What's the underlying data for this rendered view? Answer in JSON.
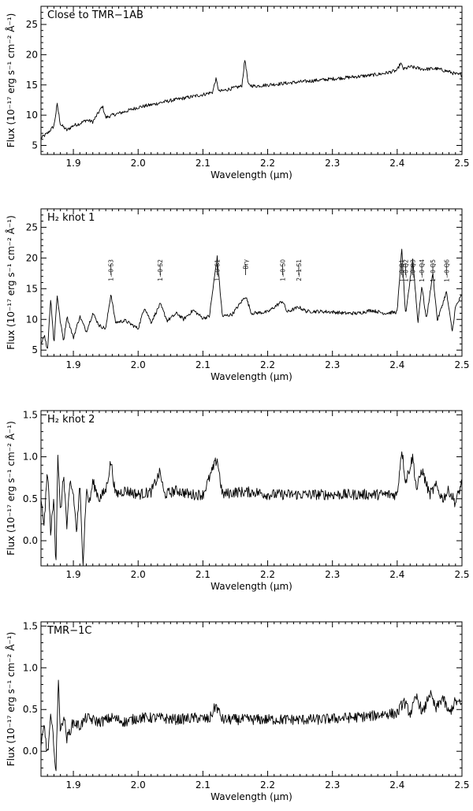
{
  "chart_data": [
    {
      "type": "line",
      "title": "Close to TMR−1AB",
      "xlabel": "Wavelength (μm)",
      "ylabel": "Flux (10⁻¹⁷ erg s⁻¹ cm⁻² Å⁻¹)",
      "xlim": [
        1.85,
        2.5
      ],
      "ylim": [
        3.5,
        28
      ],
      "xticks": [
        1.9,
        2.0,
        2.1,
        2.2,
        2.3,
        2.4,
        2.5
      ],
      "yticks": [
        5,
        10,
        15,
        20,
        25
      ],
      "grid": false,
      "line_labels": [],
      "series": [
        {
          "x": [
            1.85,
            1.86,
            1.87,
            1.875,
            1.88,
            1.89,
            1.9,
            1.91,
            1.92,
            1.93,
            1.945,
            1.95,
            1.96,
            1.98,
            2.0,
            2.02,
            2.04,
            2.06,
            2.08,
            2.1,
            2.115,
            2.12,
            2.125,
            2.14,
            2.16,
            2.165,
            2.17,
            2.18,
            2.2,
            2.22,
            2.24,
            2.26,
            2.28,
            2.3,
            2.32,
            2.34,
            2.36,
            2.38,
            2.4,
            2.405,
            2.41,
            2.42,
            2.44,
            2.46,
            2.48,
            2.49,
            2.5
          ],
          "y": [
            6.2,
            7.0,
            8.2,
            11.8,
            8.5,
            7.5,
            8.3,
            8.6,
            9.2,
            8.9,
            11.5,
            9.6,
            10.0,
            10.6,
            11.3,
            11.7,
            12.2,
            12.6,
            13.0,
            13.4,
            13.8,
            16.0,
            13.9,
            14.3,
            14.8,
            19.3,
            15.0,
            14.8,
            15.0,
            15.2,
            15.4,
            15.6,
            15.8,
            16.0,
            16.2,
            16.4,
            16.6,
            16.9,
            17.4,
            18.6,
            17.6,
            18.0,
            17.6,
            17.7,
            17.2,
            16.8,
            16.6
          ]
        }
      ]
    },
    {
      "type": "line",
      "title": "H₂ knot 1",
      "xlabel": "Wavelength (μm)",
      "ylabel": "Flux (10⁻¹⁷ erg s⁻¹ cm⁻² Å⁻¹)",
      "xlim": [
        1.85,
        2.5
      ],
      "ylim": [
        4,
        28
      ],
      "xticks": [
        1.9,
        2.0,
        2.1,
        2.2,
        2.3,
        2.4,
        2.5
      ],
      "yticks": [
        5,
        10,
        15,
        20,
        25
      ],
      "grid": false,
      "line_labels": [
        {
          "text": "1−0 S3",
          "x": 1.958
        },
        {
          "text": "1−0 S2",
          "x": 2.034
        },
        {
          "text": "1−0 S1",
          "x": 2.122
        },
        {
          "text": "Brγ",
          "x": 2.166
        },
        {
          "text": "1−0 S0",
          "x": 2.223
        },
        {
          "text": "2−1 S1",
          "x": 2.248
        },
        {
          "text": "1−0 Q1",
          "x": 2.407
        },
        {
          "text": "1−0 Q2",
          "x": 2.413
        },
        {
          "text": "1−0 Q3",
          "x": 2.424
        },
        {
          "text": "1−0 Q4",
          "x": 2.438
        },
        {
          "text": "1−0 Q5",
          "x": 2.455
        },
        {
          "text": "1−0 Q6",
          "x": 2.476
        }
      ],
      "series": [
        {
          "x": [
            1.85,
            1.855,
            1.86,
            1.865,
            1.87,
            1.875,
            1.88,
            1.885,
            1.89,
            1.9,
            1.91,
            1.92,
            1.93,
            1.94,
            1.95,
            1.958,
            1.965,
            1.98,
            2.0,
            2.01,
            2.02,
            2.034,
            2.045,
            2.06,
            2.07,
            2.085,
            2.1,
            2.11,
            2.122,
            2.13,
            2.145,
            2.166,
            2.175,
            2.2,
            2.223,
            2.23,
            2.248,
            2.26,
            2.28,
            2.3,
            2.32,
            2.34,
            2.36,
            2.38,
            2.4,
            2.407,
            2.413,
            2.424,
            2.432,
            2.438,
            2.445,
            2.455,
            2.462,
            2.476,
            2.485,
            2.49,
            2.5
          ],
          "y": [
            6.0,
            7.5,
            5.0,
            13.5,
            6.0,
            14.0,
            9.5,
            6.5,
            10.5,
            7.0,
            10.5,
            8.0,
            11.0,
            9.0,
            8.5,
            14.2,
            9.5,
            9.8,
            8.5,
            12.0,
            9.5,
            12.5,
            9.8,
            11.0,
            10.0,
            11.5,
            10.2,
            10.5,
            20.2,
            10.5,
            10.8,
            13.8,
            11.0,
            11.2,
            13.0,
            11.2,
            12.0,
            11.3,
            11.3,
            11.2,
            11.0,
            11.0,
            11.5,
            11.0,
            11.2,
            21.5,
            10.5,
            20.0,
            9.5,
            15.5,
            10.0,
            17.5,
            9.8,
            14.5,
            8.0,
            12.0,
            14.0
          ]
        }
      ]
    },
    {
      "type": "line",
      "title": "H₂ knot 2",
      "xlabel": "Wavelength (μm)",
      "ylabel": "Flux (10⁻¹⁷ erg s⁻¹ cm⁻² Å⁻¹)",
      "xlim": [
        1.85,
        2.5
      ],
      "ylim": [
        -0.3,
        1.55
      ],
      "xticks": [
        1.9,
        2.0,
        2.1,
        2.2,
        2.3,
        2.4,
        2.5
      ],
      "yticks": [
        0.0,
        0.5,
        1.0,
        1.5
      ],
      "grid": false,
      "line_labels": [],
      "series": [
        {
          "x": [
            1.85,
            1.855,
            1.86,
            1.865,
            1.87,
            1.873,
            1.876,
            1.88,
            1.885,
            1.89,
            1.895,
            1.9,
            1.905,
            1.91,
            1.915,
            1.92,
            1.925,
            1.93,
            1.94,
            1.95,
            1.958,
            1.965,
            1.98,
            2.0,
            2.02,
            2.034,
            2.04,
            2.06,
            2.08,
            2.1,
            2.122,
            2.13,
            2.15,
            2.18,
            2.2,
            2.22,
            2.25,
            2.28,
            2.3,
            2.33,
            2.36,
            2.38,
            2.4,
            2.407,
            2.413,
            2.424,
            2.43,
            2.438,
            2.45,
            2.46,
            2.47,
            2.48,
            2.49,
            2.5
          ],
          "y": [
            0.45,
            0.2,
            0.85,
            0.1,
            0.5,
            -0.3,
            1.05,
            0.3,
            0.8,
            0.15,
            0.7,
            0.55,
            0.1,
            0.65,
            -0.25,
            0.6,
            0.45,
            0.7,
            0.5,
            0.6,
            0.95,
            0.55,
            0.6,
            0.55,
            0.58,
            0.82,
            0.55,
            0.6,
            0.55,
            0.55,
            0.98,
            0.55,
            0.58,
            0.58,
            0.55,
            0.55,
            0.55,
            0.55,
            0.55,
            0.55,
            0.55,
            0.55,
            0.55,
            1.1,
            0.7,
            1.0,
            0.6,
            0.85,
            0.55,
            0.65,
            0.5,
            0.6,
            0.45,
            0.7
          ]
        }
      ]
    },
    {
      "type": "line",
      "title": "TMR−1C",
      "xlabel": "Wavelength (μm)",
      "ylabel": "Flux (10⁻¹⁷ erg s⁻¹ cm⁻² Å⁻¹)",
      "xlim": [
        1.85,
        2.5
      ],
      "ylim": [
        -0.3,
        1.55
      ],
      "xticks": [
        1.9,
        2.0,
        2.1,
        2.2,
        2.3,
        2.4,
        2.5
      ],
      "yticks": [
        0.0,
        0.5,
        1.0,
        1.5
      ],
      "grid": false,
      "line_labels": [],
      "series": [
        {
          "x": [
            1.85,
            1.855,
            1.86,
            1.865,
            1.87,
            1.873,
            1.877,
            1.88,
            1.885,
            1.89,
            1.9,
            1.91,
            1.92,
            1.94,
            1.96,
            1.98,
            2.0,
            2.03,
            2.06,
            2.09,
            2.11,
            2.12,
            2.13,
            2.16,
            2.2,
            2.24,
            2.28,
            2.32,
            2.36,
            2.38,
            2.4,
            2.41,
            2.42,
            2.43,
            2.44,
            2.45,
            2.46,
            2.47,
            2.48,
            2.49,
            2.5
          ],
          "y": [
            0.05,
            0.3,
            -0.05,
            0.4,
            0.1,
            -0.3,
            0.92,
            0.2,
            0.45,
            0.15,
            0.35,
            0.3,
            0.4,
            0.35,
            0.4,
            0.35,
            0.4,
            0.4,
            0.38,
            0.4,
            0.38,
            0.55,
            0.38,
            0.38,
            0.38,
            0.38,
            0.38,
            0.4,
            0.42,
            0.45,
            0.45,
            0.6,
            0.45,
            0.65,
            0.45,
            0.7,
            0.5,
            0.65,
            0.45,
            0.6,
            0.55
          ]
        }
      ]
    }
  ]
}
